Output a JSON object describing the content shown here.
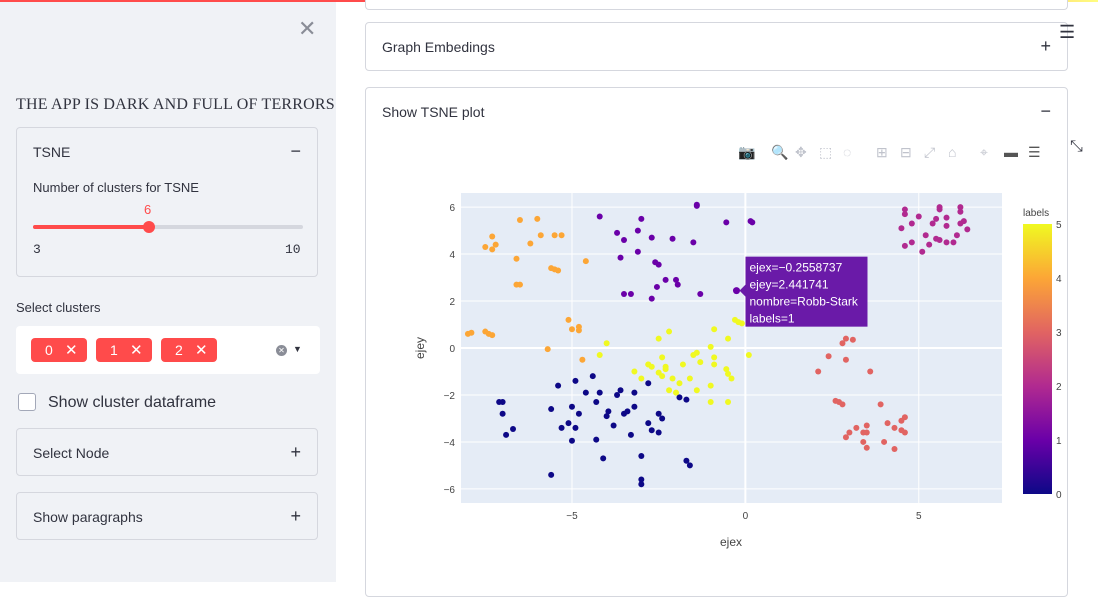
{
  "sidebar": {
    "close_icon": "close-icon",
    "app_title": "THE APP IS DARK AND FULL OF TERRORS",
    "tsne_expander": {
      "label": "TSNE",
      "toggle": "−",
      "slider_label": "Number of clusters for TSNE",
      "slider_value": "6",
      "slider_min": "3",
      "slider_max": "10",
      "slider_fraction": 0.4286
    },
    "select_clusters": {
      "label": "Select clusters",
      "chips": [
        "0",
        "1",
        "2"
      ],
      "chip_remove": "✕"
    },
    "checkbox_label": "Show cluster dataframe",
    "select_node": {
      "label": "Select Node",
      "toggle": "+"
    },
    "show_paragraphs": {
      "label": "Show paragraphs",
      "toggle": "+"
    }
  },
  "main": {
    "graph_embeddings": {
      "label": "Graph Embedings",
      "toggle": "+"
    },
    "tsne_plot": {
      "label": "Show TSNE plot",
      "toggle": "−"
    }
  },
  "toolbar_icons": [
    "camera-icon",
    "zoom-icon",
    "pan-icon",
    "box-select-icon",
    "lasso-select-icon",
    "zoom-in-icon",
    "zoom-out-icon",
    "autoscale-icon",
    "home-icon",
    "spike-lines-icon",
    "hover-closest-icon",
    "hover-compare-icon",
    "fullscreen-icon"
  ],
  "chart_data": {
    "type": "scatter",
    "xlabel": "ejex",
    "ylabel": "ejey",
    "xlim": [
      -8.2,
      7.4
    ],
    "ylim": [
      -6.6,
      6.6
    ],
    "x_ticks": [
      "−5",
      "0",
      "5"
    ],
    "x_tick_values": [
      -5,
      0,
      5
    ],
    "y_ticks": [
      "6",
      "4",
      "2",
      "0",
      "−2",
      "−4",
      "−6"
    ],
    "y_tick_values": [
      6,
      4,
      2,
      0,
      -2,
      -4,
      -6
    ],
    "colorbar": {
      "title": "labels",
      "ticks": [
        "5",
        "4",
        "3",
        "2",
        "1",
        "0"
      ],
      "range": [
        0,
        5
      ]
    },
    "colors": [
      "#0d0887",
      "#6a00a8",
      "#b12a90",
      "#e16462",
      "#fca636",
      "#f0f921"
    ],
    "tooltip": {
      "lines": [
        "ejex=−0.2558737",
        "ejey=2.441741",
        "nombre=Robb-Stark",
        "labels=1"
      ],
      "x": -0.2558737,
      "y": 2.441741,
      "bg": "#6a1aa8"
    },
    "points": [
      [
        -7.1,
        -2.3,
        0
      ],
      [
        -7.0,
        -2.3,
        0
      ],
      [
        -6.9,
        -3.7,
        0
      ],
      [
        -7.0,
        -2.8,
        0
      ],
      [
        -6.7,
        -3.45,
        0
      ],
      [
        -5.6,
        -5.4,
        0
      ],
      [
        -5.6,
        -2.6,
        0
      ],
      [
        -5.3,
        -3.4,
        0
      ],
      [
        -4.9,
        -3.4,
        0
      ],
      [
        -5.0,
        -3.95,
        0
      ],
      [
        -5.4,
        -1.6,
        0
      ],
      [
        -5.0,
        -2.5,
        0
      ],
      [
        -5.1,
        -3.2,
        0
      ],
      [
        -4.8,
        -2.8,
        0
      ],
      [
        -4.9,
        -1.4,
        0
      ],
      [
        -4.6,
        -1.9,
        0
      ],
      [
        -4.4,
        -1.2,
        0
      ],
      [
        -4.3,
        -2.3,
        0
      ],
      [
        -4.2,
        -1.9,
        0
      ],
      [
        -4.3,
        -3.9,
        0
      ],
      [
        -4.1,
        -4.7,
        0
      ],
      [
        -4.0,
        -2.9,
        0
      ],
      [
        -3.95,
        -2.7,
        0
      ],
      [
        -3.8,
        -3.3,
        0
      ],
      [
        -3.6,
        -1.8,
        0
      ],
      [
        -3.7,
        -2.0,
        0
      ],
      [
        -3.5,
        -2.8,
        0
      ],
      [
        -3.4,
        -2.7,
        0
      ],
      [
        -3.3,
        -3.7,
        0
      ],
      [
        -3.2,
        -2.5,
        0
      ],
      [
        -3.0,
        -4.6,
        0
      ],
      [
        -3.0,
        -5.6,
        0
      ],
      [
        -3.0,
        -5.8,
        0
      ],
      [
        -3.2,
        -1.9,
        0
      ],
      [
        -2.8,
        -1.5,
        0
      ],
      [
        -2.8,
        -3.2,
        0
      ],
      [
        -2.7,
        -3.5,
        0
      ],
      [
        -2.5,
        -2.8,
        0
      ],
      [
        -2.4,
        -3.0,
        0
      ],
      [
        -2.5,
        -3.6,
        0
      ],
      [
        -1.7,
        -4.8,
        0
      ],
      [
        -1.6,
        -5.0,
        0
      ],
      [
        -1.9,
        -2.1,
        0
      ],
      [
        -1.7,
        -2.2,
        0
      ],
      [
        -4.2,
        5.6,
        1
      ],
      [
        -3.7,
        4.9,
        1
      ],
      [
        -3.5,
        4.6,
        1
      ],
      [
        -3.6,
        3.85,
        1
      ],
      [
        -3.1,
        5.0,
        1
      ],
      [
        -3.0,
        5.5,
        1
      ],
      [
        -3.1,
        4.1,
        1
      ],
      [
        -3.5,
        2.3,
        1
      ],
      [
        -3.3,
        2.3,
        1
      ],
      [
        -2.6,
        3.65,
        1
      ],
      [
        -2.5,
        3.55,
        1
      ],
      [
        -2.55,
        2.6,
        1
      ],
      [
        -2.7,
        2.1,
        1
      ],
      [
        -2.3,
        2.9,
        1
      ],
      [
        -2.7,
        4.7,
        1
      ],
      [
        -2.0,
        2.9,
        1
      ],
      [
        -1.95,
        2.7,
        1
      ],
      [
        -2.1,
        4.65,
        1
      ],
      [
        -1.5,
        4.5,
        1
      ],
      [
        -1.4,
        6.1,
        1
      ],
      [
        -1.4,
        6.05,
        1
      ],
      [
        -1.3,
        2.3,
        1
      ],
      [
        -0.55,
        5.35,
        1
      ],
      [
        0.2,
        5.35,
        1
      ],
      [
        0.15,
        5.4,
        1
      ],
      [
        -0.25,
        2.44,
        1
      ],
      [
        4.6,
        5.9,
        2
      ],
      [
        4.6,
        5.7,
        2
      ],
      [
        4.5,
        5.1,
        2
      ],
      [
        4.8,
        5.3,
        2
      ],
      [
        5.0,
        5.6,
        2
      ],
      [
        4.8,
        4.5,
        2
      ],
      [
        4.6,
        4.35,
        2
      ],
      [
        5.2,
        4.8,
        2
      ],
      [
        5.3,
        4.4,
        2
      ],
      [
        5.1,
        4.1,
        2
      ],
      [
        5.5,
        5.5,
        2
      ],
      [
        5.6,
        5.9,
        2
      ],
      [
        5.6,
        6.0,
        2
      ],
      [
        5.4,
        5.3,
        2
      ],
      [
        5.6,
        4.6,
        2
      ],
      [
        5.5,
        4.65,
        2
      ],
      [
        5.8,
        5.2,
        2
      ],
      [
        5.8,
        5.55,
        2
      ],
      [
        5.8,
        4.5,
        2
      ],
      [
        6.0,
        4.5,
        2
      ],
      [
        6.1,
        4.8,
        2
      ],
      [
        6.2,
        5.8,
        2
      ],
      [
        6.2,
        6.0,
        2
      ],
      [
        6.2,
        5.3,
        2
      ],
      [
        6.3,
        5.4,
        2
      ],
      [
        6.4,
        5.05,
        2
      ],
      [
        2.1,
        -1.0,
        3
      ],
      [
        2.4,
        -0.35,
        3
      ],
      [
        2.6,
        -2.25,
        3
      ],
      [
        2.7,
        -2.3,
        3
      ],
      [
        2.8,
        -2.4,
        3
      ],
      [
        2.8,
        0.2,
        3
      ],
      [
        2.9,
        0.4,
        3
      ],
      [
        2.9,
        -0.5,
        3
      ],
      [
        3.1,
        0.35,
        3
      ],
      [
        2.9,
        -3.8,
        3
      ],
      [
        3.0,
        -3.6,
        3
      ],
      [
        3.2,
        -3.4,
        3
      ],
      [
        3.4,
        -3.6,
        3
      ],
      [
        3.4,
        -4.0,
        3
      ],
      [
        3.5,
        -3.3,
        3
      ],
      [
        3.5,
        -4.25,
        3
      ],
      [
        3.5,
        -3.6,
        3
      ],
      [
        3.6,
        -1.0,
        3
      ],
      [
        3.9,
        -2.4,
        3
      ],
      [
        4.1,
        -3.2,
        3
      ],
      [
        4.0,
        -4.0,
        3
      ],
      [
        4.3,
        -3.4,
        3
      ],
      [
        4.3,
        -4.3,
        3
      ],
      [
        4.5,
        -3.5,
        3
      ],
      [
        4.6,
        -3.6,
        3
      ],
      [
        4.5,
        -3.1,
        3
      ],
      [
        4.6,
        -2.95,
        3
      ],
      [
        -8.0,
        0.6,
        4
      ],
      [
        -7.9,
        0.65,
        4
      ],
      [
        -7.5,
        0.7,
        4
      ],
      [
        -7.4,
        0.6,
        4
      ],
      [
        -7.3,
        0.55,
        4
      ],
      [
        -7.5,
        4.3,
        4
      ],
      [
        -7.3,
        4.2,
        4
      ],
      [
        -7.3,
        4.75,
        4
      ],
      [
        -7.2,
        4.4,
        4
      ],
      [
        -6.6,
        3.8,
        4
      ],
      [
        -6.6,
        2.7,
        4
      ],
      [
        -6.5,
        2.7,
        4
      ],
      [
        -6.5,
        5.45,
        4
      ],
      [
        -6.2,
        4.45,
        4
      ],
      [
        -6.0,
        5.5,
        4
      ],
      [
        -5.9,
        4.8,
        4
      ],
      [
        -5.7,
        -0.05,
        4
      ],
      [
        -5.6,
        3.4,
        4
      ],
      [
        -5.5,
        3.35,
        4
      ],
      [
        -5.4,
        3.3,
        4
      ],
      [
        -5.5,
        4.8,
        4
      ],
      [
        -5.3,
        4.8,
        4
      ],
      [
        -5.1,
        1.2,
        4
      ],
      [
        -5.0,
        0.8,
        4
      ],
      [
        -4.8,
        0.9,
        4
      ],
      [
        -4.8,
        0.75,
        4
      ],
      [
        -4.6,
        3.7,
        4
      ],
      [
        -4.7,
        -0.5,
        4
      ],
      [
        -4.2,
        -0.3,
        5
      ],
      [
        -4.0,
        0.2,
        5
      ],
      [
        -3.2,
        -1.0,
        5
      ],
      [
        -3.0,
        -1.3,
        5
      ],
      [
        -2.8,
        -0.7,
        5
      ],
      [
        -2.8,
        -0.7,
        5
      ],
      [
        -2.7,
        -0.8,
        5
      ],
      [
        -2.5,
        0.4,
        5
      ],
      [
        -2.5,
        -1.05,
        5
      ],
      [
        -2.4,
        -1.2,
        5
      ],
      [
        -2.4,
        -0.4,
        5
      ],
      [
        -2.3,
        -0.8,
        5
      ],
      [
        -2.3,
        -0.9,
        5
      ],
      [
        -2.2,
        -1.8,
        5
      ],
      [
        -2.2,
        0.7,
        5
      ],
      [
        -2.0,
        -1.9,
        5
      ],
      [
        -2.1,
        -1.3,
        5
      ],
      [
        -1.9,
        -1.5,
        5
      ],
      [
        -1.8,
        -0.7,
        5
      ],
      [
        -1.6,
        -1.3,
        5
      ],
      [
        -1.5,
        -0.3,
        5
      ],
      [
        -1.4,
        -0.2,
        5
      ],
      [
        -1.3,
        -0.6,
        5
      ],
      [
        -1.4,
        -1.8,
        5
      ],
      [
        -1.0,
        -1.6,
        5
      ],
      [
        -1.0,
        -2.3,
        5
      ],
      [
        -0.9,
        -0.7,
        5
      ],
      [
        -1.0,
        0.05,
        5
      ],
      [
        -0.9,
        -0.4,
        5
      ],
      [
        -0.5,
        0.4,
        5
      ],
      [
        -0.4,
        -1.3,
        5
      ],
      [
        -0.5,
        -2.3,
        5
      ],
      [
        -0.9,
        0.8,
        5
      ],
      [
        -0.55,
        -0.9,
        5
      ],
      [
        -0.5,
        -1.1,
        5
      ],
      [
        -0.3,
        1.2,
        5
      ],
      [
        -0.2,
        1.1,
        5
      ],
      [
        -0.1,
        1.05,
        5
      ],
      [
        0.1,
        -0.3,
        5
      ]
    ]
  }
}
